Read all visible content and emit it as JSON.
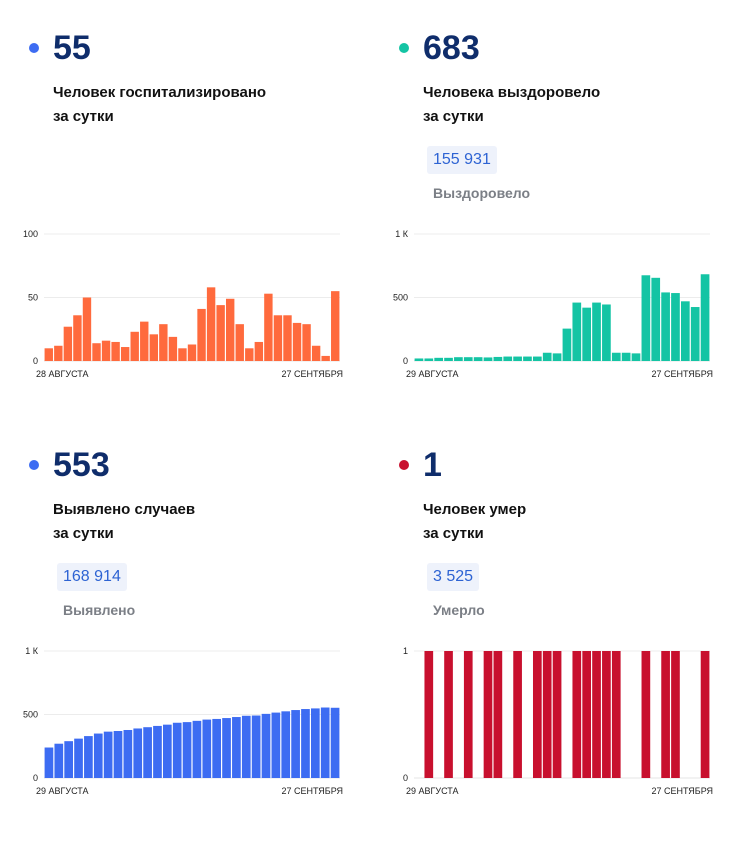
{
  "chart_data": [
    {
      "type": "bar",
      "number": "55",
      "label_line1": "Человек госпитализировано",
      "label_line2": "за сутки",
      "dot_color": "#3d6cf2",
      "bar_color": "#ff6a3d",
      "total": null,
      "total_caption": null,
      "ylim": [
        0,
        100
      ],
      "yticks": [
        {
          "v": 0,
          "t": "0"
        },
        {
          "v": 50,
          "t": "50"
        },
        {
          "v": 100,
          "t": "100"
        }
      ],
      "x_start": "28 АВГУСТА",
      "x_end": "27 СЕНТЯБРЯ",
      "values": [
        10,
        12,
        27,
        36,
        50,
        14,
        16,
        15,
        11,
        23,
        31,
        21,
        29,
        19,
        10,
        13,
        41,
        58,
        44,
        49,
        29,
        10,
        15,
        53,
        36,
        36,
        30,
        29,
        12,
        4,
        55
      ]
    },
    {
      "type": "bar",
      "number": "683",
      "label_line1": "Человека выздоровело",
      "label_line2": "за сутки",
      "dot_color": "#14c4a4",
      "bar_color": "#14c4a4",
      "total": "155 931",
      "total_caption": "Выздоровело",
      "ylim": [
        0,
        1000
      ],
      "yticks": [
        {
          "v": 0,
          "t": "0"
        },
        {
          "v": 500,
          "t": "500"
        },
        {
          "v": 1000,
          "t": "1 К"
        }
      ],
      "x_start": "29 АВГУСТА",
      "x_end": "27 СЕНТЯБРЯ",
      "values": [
        20,
        20,
        25,
        25,
        30,
        30,
        30,
        28,
        32,
        35,
        35,
        35,
        35,
        65,
        60,
        255,
        460,
        420,
        460,
        445,
        65,
        65,
        60,
        675,
        655,
        540,
        535,
        470,
        425,
        683
      ]
    },
    {
      "type": "bar",
      "number": "553",
      "label_line1": "Выявлено случаев",
      "label_line2": "за сутки",
      "dot_color": "#3d6cf2",
      "bar_color": "#3d6cf2",
      "total": "168 914",
      "total_caption": "Выявлено",
      "ylim": [
        0,
        1000
      ],
      "yticks": [
        {
          "v": 0,
          "t": "0"
        },
        {
          "v": 500,
          "t": "500"
        },
        {
          "v": 1000,
          "t": "1 К"
        }
      ],
      "x_start": "29 АВГУСТА",
      "x_end": "27 СЕНТЯБРЯ",
      "values": [
        240,
        270,
        290,
        310,
        330,
        350,
        365,
        370,
        378,
        390,
        400,
        410,
        420,
        435,
        440,
        450,
        460,
        465,
        472,
        480,
        490,
        492,
        505,
        515,
        525,
        535,
        543,
        548,
        555,
        553
      ]
    },
    {
      "type": "bar",
      "number": "1",
      "label_line1": "Человек умер",
      "label_line2": "за сутки",
      "dot_color": "#c8102e",
      "bar_color": "#c8102e",
      "total": "3 525",
      "total_caption": "Умерло",
      "ylim": [
        0,
        1
      ],
      "yticks": [
        {
          "v": 0,
          "t": "0"
        },
        {
          "v": 1,
          "t": "1"
        }
      ],
      "x_start": "29 АВГУСТА",
      "x_end": "27 СЕНТЯБРЯ",
      "values": [
        0,
        1,
        0,
        1,
        0,
        1,
        0,
        1,
        1,
        0,
        1,
        0,
        1,
        1,
        1,
        0,
        1,
        1,
        1,
        1,
        1,
        0,
        0,
        1,
        0,
        1,
        1,
        0,
        0,
        1
      ]
    }
  ]
}
